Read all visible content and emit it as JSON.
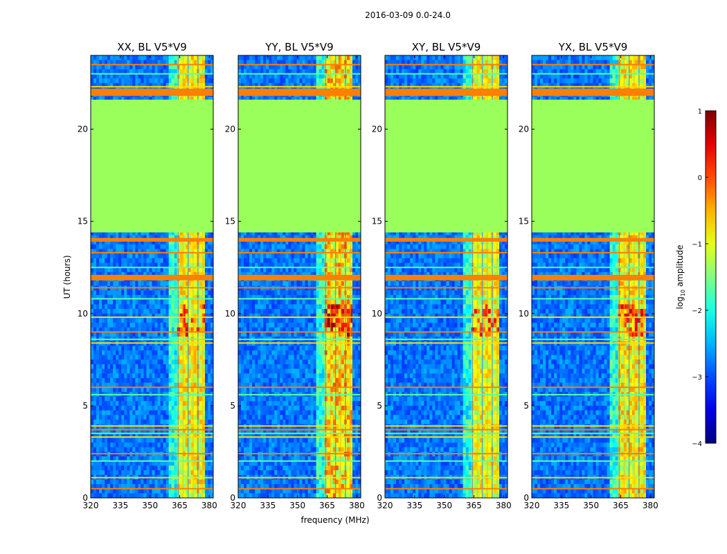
{
  "chart_data": {
    "type": "heatmap",
    "suptitle": "2016-03-09 0.0-24.0",
    "xlabel": "frequency (MHz)",
    "ylabel": "UT (hours)",
    "xlim": [
      320,
      382
    ],
    "ylim": [
      0,
      24
    ],
    "xticks": [
      320,
      335,
      350,
      365,
      380
    ],
    "yticks": [
      0,
      5,
      10,
      15,
      20
    ],
    "colorbar": {
      "label_prefix": "log",
      "label_sub": "10",
      "label_suffix": " amplitude",
      "range": [
        -4,
        1
      ],
      "ticks": [
        1,
        0,
        -1,
        -2,
        -3,
        -4
      ],
      "tick_labels": [
        "1",
        "0",
        "−1",
        "−2",
        "−3",
        "−4"
      ],
      "colormap": "jet"
    },
    "colors": {
      "background_low": "#1f52ff",
      "no_data_fill": "#9aff5a",
      "rfi_band": "#ff7f00",
      "signal_high": "#ffdd00"
    },
    "panels": [
      {
        "title": "XX, BL V5*V9",
        "no_data_hours": [
          14.4,
          21.6
        ],
        "rfi_band_mhz": [
          362,
          380
        ],
        "signal_strength": 0.75,
        "bright_band_mhz": [
          363,
          378
        ],
        "rfi_rows_hours": [
          0.5,
          1.1,
          2.0,
          2.4,
          3.3,
          3.5,
          3.7,
          3.9,
          5.6,
          6.0,
          8.4,
          8.6,
          9.0,
          9.8,
          10.8,
          11.4,
          11.9,
          12.5,
          13.3,
          14.0,
          21.9,
          22.1,
          22.3,
          23.0,
          23.5
        ]
      },
      {
        "title": "YY, BL V5*V9",
        "no_data_hours": [
          14.4,
          21.6
        ],
        "rfi_band_mhz": [
          362,
          380
        ],
        "signal_strength": 1.0,
        "bright_band_mhz": [
          363,
          378
        ],
        "rfi_rows_hours": [
          0.5,
          1.1,
          2.0,
          2.4,
          3.3,
          3.5,
          3.7,
          3.9,
          5.6,
          6.0,
          8.4,
          8.6,
          9.0,
          9.8,
          10.8,
          11.4,
          11.9,
          12.5,
          13.3,
          14.0,
          21.9,
          22.1,
          22.3,
          23.0,
          23.5
        ]
      },
      {
        "title": "XY, BL V5*V9",
        "no_data_hours": [
          14.4,
          21.6
        ],
        "rfi_band_mhz": [
          362,
          380
        ],
        "signal_strength": 0.7,
        "bright_band_mhz": [
          363,
          378
        ],
        "rfi_rows_hours": [
          0.5,
          1.1,
          2.0,
          2.4,
          3.3,
          3.5,
          3.7,
          3.9,
          5.6,
          6.0,
          8.4,
          8.6,
          9.0,
          9.8,
          10.8,
          11.4,
          11.9,
          12.5,
          13.3,
          14.0,
          21.9,
          22.1,
          22.3,
          23.0,
          23.5
        ]
      },
      {
        "title": "YX, BL V5*V9",
        "no_data_hours": [
          14.4,
          21.6
        ],
        "rfi_band_mhz": [
          362,
          380
        ],
        "signal_strength": 0.8,
        "bright_band_mhz": [
          363,
          378
        ],
        "rfi_rows_hours": [
          0.5,
          1.1,
          2.0,
          2.4,
          3.3,
          3.5,
          3.7,
          3.9,
          5.6,
          6.0,
          8.4,
          8.6,
          9.0,
          9.8,
          10.8,
          11.4,
          11.9,
          12.5,
          13.3,
          14.0,
          21.9,
          22.1,
          22.3,
          23.0,
          23.5
        ]
      }
    ]
  }
}
